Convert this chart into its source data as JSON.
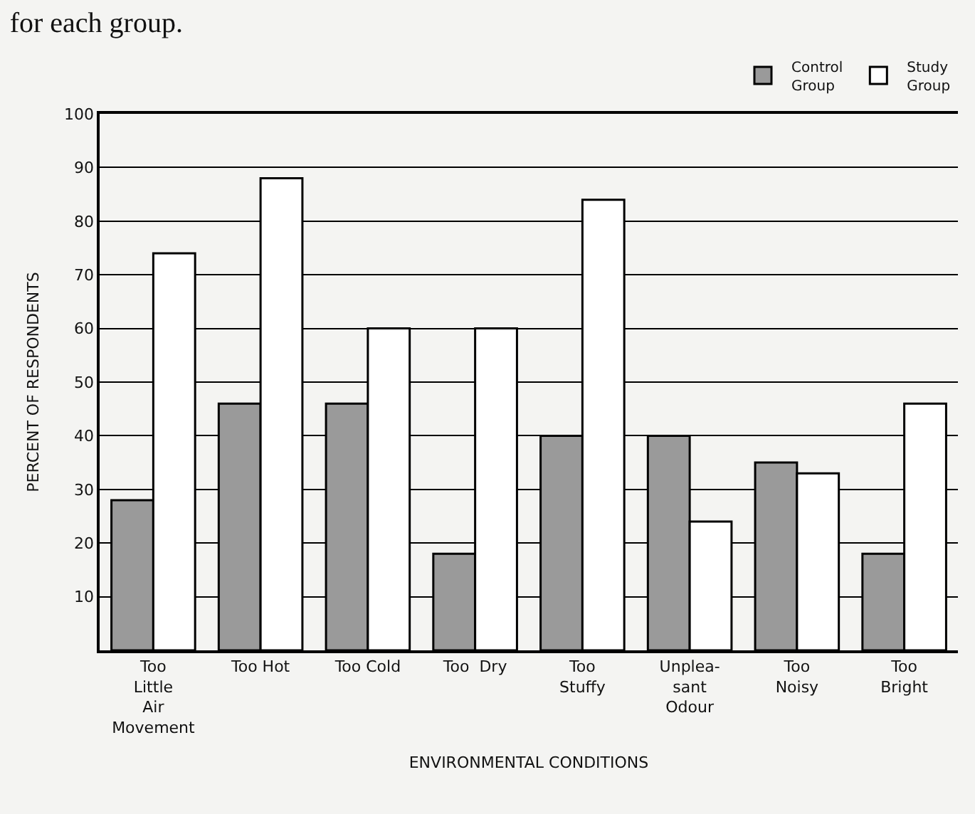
{
  "chart_data": {
    "type": "bar",
    "title": "for each group.",
    "xlabel": "ENVIRONMENTAL CONDITIONS",
    "ylabel": "PERCENT OF RESPONDENTS",
    "categories": [
      "Too\nLittle\nAir\nMovement",
      "Too Hot",
      "Too Cold",
      "Too  Dry",
      "Too\nStuffy",
      "Unplea-\nsant\nOdour",
      "Too\nNoisy",
      "Too\nBright"
    ],
    "series": [
      {
        "name": "Control\nGroup",
        "color": "#9a9a9a",
        "values": [
          28,
          46,
          46,
          18,
          40,
          40,
          35,
          18
        ]
      },
      {
        "name": "Study\nGroup",
        "color": "#ffffff",
        "values": [
          74,
          88,
          60,
          60,
          84,
          24,
          33,
          46
        ]
      }
    ],
    "ylim": [
      0,
      100
    ],
    "yticks": [
      {
        "value": 0,
        "label": null
      },
      10,
      20,
      30,
      40,
      50,
      60,
      70,
      80,
      90,
      100
    ],
    "grid": "y",
    "legend": "top right"
  }
}
